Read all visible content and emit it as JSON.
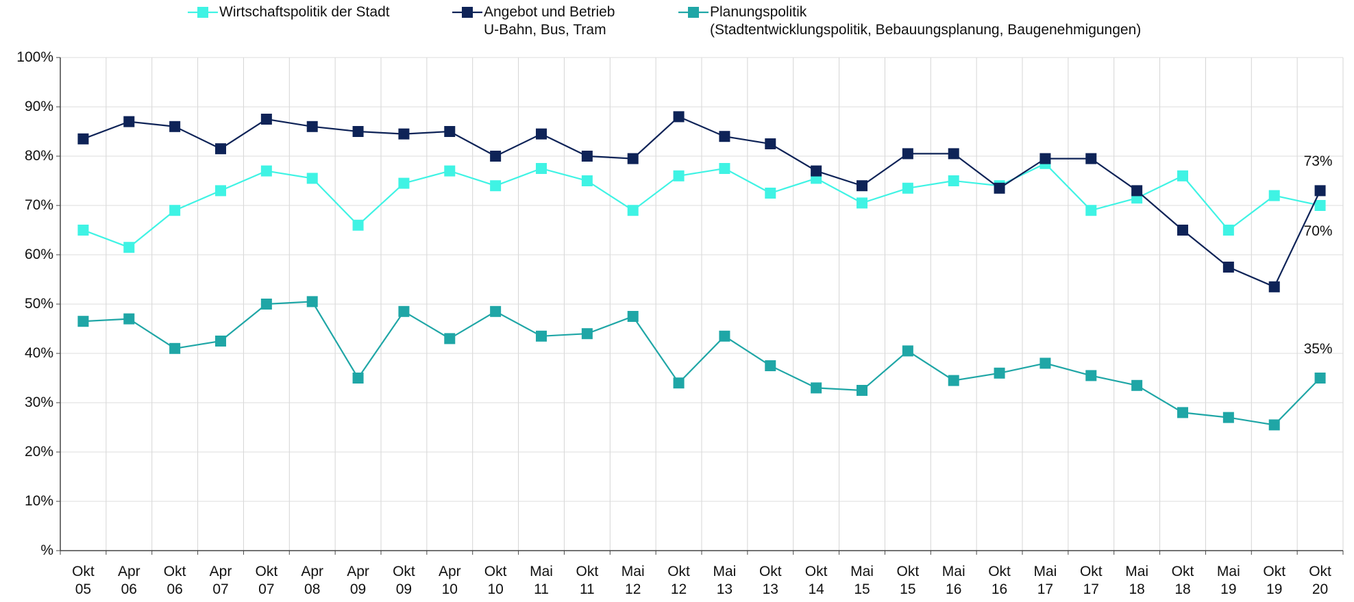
{
  "chart_data": {
    "type": "line",
    "categories": [
      "Okt\n05",
      "Apr\n06",
      "Okt\n06",
      "Apr\n07",
      "Okt\n07",
      "Apr\n08",
      "Apr\n09",
      "Okt\n09",
      "Apr\n10",
      "Okt\n10",
      "Mai\n11",
      "Okt\n11",
      "Mai\n12",
      "Okt\n12",
      "Mai\n13",
      "Okt\n13",
      "Okt\n14",
      "Mai\n15",
      "Okt\n15",
      "Mai\n16",
      "Okt\n16",
      "Mai\n17",
      "Okt\n17",
      "Mai\n18",
      "Okt\n18",
      "Mai\n19",
      "Okt\n19",
      "Okt\n20"
    ],
    "series": [
      {
        "name": "Wirtschaftspolitik der Stadt",
        "color": "#3ff3e4",
        "values": [
          65,
          61.5,
          69,
          73,
          77,
          75.5,
          66,
          74.5,
          77,
          74,
          77.5,
          75,
          69,
          76,
          77.5,
          72.5,
          75.5,
          70.5,
          73.5,
          75,
          74,
          78.5,
          69,
          71.5,
          76,
          65,
          72,
          70
        ],
        "value_labels": [
          null,
          null,
          null,
          null,
          null,
          null,
          null,
          null,
          null,
          null,
          null,
          null,
          null,
          null,
          null,
          null,
          null,
          null,
          null,
          null,
          null,
          null,
          null,
          null,
          null,
          null,
          null,
          "70%"
        ]
      },
      {
        "name": "Angebot und Betrieb\nU-Bahn, Bus, Tram",
        "color": "#0e2357",
        "values": [
          83.5,
          87,
          86,
          81.5,
          87.5,
          86,
          85,
          84.5,
          85,
          80,
          84.5,
          80,
          79.5,
          88,
          84,
          82.5,
          77,
          74,
          80.5,
          80.5,
          73.5,
          79.5,
          79.5,
          73,
          65,
          57.5,
          53.5,
          73
        ],
        "value_labels": [
          null,
          null,
          null,
          null,
          null,
          null,
          null,
          null,
          null,
          null,
          null,
          null,
          null,
          null,
          null,
          null,
          null,
          null,
          null,
          null,
          null,
          null,
          null,
          null,
          null,
          null,
          null,
          "73%"
        ]
      },
      {
        "name": "Planungspolitik\n(Stadtentwicklungspolitik, Bebauungsplanung, Baugenehmigungen)",
        "color": "#1fa6a6",
        "values": [
          46.5,
          47,
          41,
          42.5,
          50,
          50.5,
          35,
          48.5,
          43,
          48.5,
          43.5,
          44,
          47.5,
          34,
          43.5,
          37.5,
          33,
          32.5,
          40.5,
          34.5,
          36,
          38,
          35.5,
          33.5,
          28,
          27,
          25.5,
          35
        ],
        "value_labels": [
          null,
          null,
          null,
          null,
          null,
          null,
          null,
          null,
          null,
          null,
          null,
          null,
          null,
          null,
          null,
          null,
          null,
          null,
          null,
          null,
          null,
          null,
          null,
          null,
          null,
          null,
          null,
          "35%"
        ]
      }
    ],
    "ylim": [
      0,
      100
    ],
    "yticks": [
      {
        "value": 0,
        "label": "%"
      },
      {
        "value": 10,
        "label": "10%"
      },
      {
        "value": 20,
        "label": "20%"
      },
      {
        "value": 30,
        "label": "30%"
      },
      {
        "value": 40,
        "label": "40%"
      },
      {
        "value": 50,
        "label": "50%"
      },
      {
        "value": 60,
        "label": "60%"
      },
      {
        "value": 70,
        "label": "70%"
      },
      {
        "value": 80,
        "label": "80%"
      },
      {
        "value": 90,
        "label": "90%"
      },
      {
        "value": 100,
        "label": "100%"
      }
    ],
    "grid": true
  }
}
